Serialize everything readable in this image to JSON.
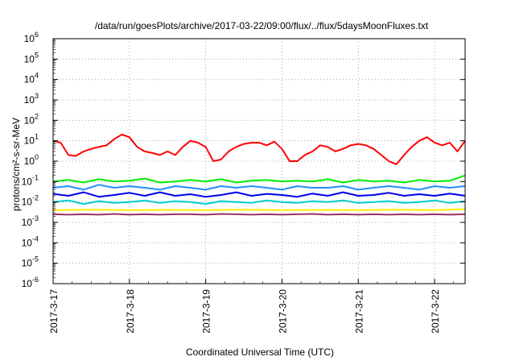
{
  "chart_data": {
    "type": "line",
    "title": "/data/run/goesPlots/archive/2017-03-22/09:00/flux/../flux/5daysMoonFluxes.txt",
    "xlabel": "Coordinated Universal Time (UTC)",
    "ylabel": "protons/cm²-s-sr-MeV",
    "yscale": "log",
    "ylim_exp": [
      -6,
      6
    ],
    "ytick_base": "10",
    "ytick_exponents": [
      "-6",
      "-5",
      "-4",
      "-3",
      "-2",
      "-1",
      "0",
      "1",
      "2",
      "3",
      "4",
      "5",
      "6"
    ],
    "xlim_days": [
      0,
      5.4
    ],
    "x_ticks": [
      {
        "day": 0,
        "label": "2017-3-17"
      },
      {
        "day": 1,
        "label": "2017-3-18"
      },
      {
        "day": 2,
        "label": "2017-3-19"
      },
      {
        "day": 3,
        "label": "2017-3-20"
      },
      {
        "day": 4,
        "label": "2017-3-21"
      },
      {
        "day": 5,
        "label": "2017-3-22"
      }
    ],
    "grid": true,
    "series": [
      {
        "color": "#ff0000",
        "x": [
          0,
          0.1,
          0.2,
          0.3,
          0.4,
          0.5,
          0.6,
          0.7,
          0.8,
          0.9,
          1.0,
          1.1,
          1.2,
          1.3,
          1.4,
          1.5,
          1.6,
          1.7,
          1.8,
          1.9,
          2.0,
          2.1,
          2.2,
          2.3,
          2.4,
          2.5,
          2.6,
          2.7,
          2.8,
          2.9,
          3.0,
          3.1,
          3.2,
          3.3,
          3.4,
          3.5,
          3.6,
          3.7,
          3.8,
          3.9,
          4.0,
          4.1,
          4.2,
          4.3,
          4.4,
          4.5,
          4.6,
          4.7,
          4.8,
          4.9,
          5.0,
          5.1,
          5.2,
          5.3,
          5.4
        ],
        "values": [
          10,
          8,
          2,
          1.8,
          3,
          4,
          5,
          6,
          12,
          20,
          15,
          5,
          3,
          2.5,
          2,
          3,
          2,
          5,
          10,
          8,
          5,
          1,
          1.2,
          3,
          5,
          7,
          8,
          8,
          6,
          9,
          4,
          1,
          1,
          2,
          3,
          6,
          5,
          3,
          4,
          6,
          7,
          6,
          4,
          2,
          1,
          0.7,
          2,
          5,
          10,
          15,
          8,
          6,
          8,
          3,
          10
        ]
      },
      {
        "color": "#00ee00",
        "x": [
          0,
          0.2,
          0.4,
          0.6,
          0.8,
          1.0,
          1.2,
          1.4,
          1.6,
          1.8,
          2.0,
          2.2,
          2.4,
          2.6,
          2.8,
          3.0,
          3.2,
          3.4,
          3.6,
          3.8,
          4.0,
          4.2,
          4.4,
          4.6,
          4.8,
          5.0,
          5.2,
          5.4
        ],
        "values": [
          0.1,
          0.12,
          0.09,
          0.13,
          0.1,
          0.11,
          0.14,
          0.09,
          0.1,
          0.12,
          0.1,
          0.13,
          0.09,
          0.11,
          0.12,
          0.1,
          0.11,
          0.1,
          0.13,
          0.09,
          0.12,
          0.1,
          0.11,
          0.09,
          0.12,
          0.1,
          0.11,
          0.2
        ]
      },
      {
        "color": "#1e90ff",
        "x": [
          0,
          0.2,
          0.4,
          0.6,
          0.8,
          1.0,
          1.2,
          1.4,
          1.6,
          1.8,
          2.0,
          2.2,
          2.4,
          2.6,
          2.8,
          3.0,
          3.2,
          3.4,
          3.6,
          3.8,
          4.0,
          4.2,
          4.4,
          4.6,
          4.8,
          5.0,
          5.2,
          5.4
        ],
        "values": [
          0.05,
          0.06,
          0.04,
          0.07,
          0.05,
          0.06,
          0.05,
          0.04,
          0.06,
          0.05,
          0.04,
          0.06,
          0.05,
          0.06,
          0.05,
          0.04,
          0.06,
          0.05,
          0.05,
          0.06,
          0.04,
          0.05,
          0.06,
          0.05,
          0.04,
          0.06,
          0.05,
          0.06
        ]
      },
      {
        "color": "#0000ee",
        "x": [
          0,
          0.2,
          0.4,
          0.6,
          0.8,
          1.0,
          1.2,
          1.4,
          1.6,
          1.8,
          2.0,
          2.2,
          2.4,
          2.6,
          2.8,
          3.0,
          3.2,
          3.4,
          3.6,
          3.8,
          4.0,
          4.2,
          4.4,
          4.6,
          4.8,
          5.0,
          5.2,
          5.4
        ],
        "values": [
          0.025,
          0.02,
          0.03,
          0.018,
          0.022,
          0.028,
          0.02,
          0.03,
          0.02,
          0.024,
          0.018,
          0.022,
          0.03,
          0.02,
          0.025,
          0.022,
          0.018,
          0.026,
          0.02,
          0.03,
          0.02,
          0.022,
          0.028,
          0.02,
          0.024,
          0.02,
          0.026,
          0.02
        ]
      },
      {
        "color": "#00cccc",
        "x": [
          0,
          0.2,
          0.4,
          0.6,
          0.8,
          1.0,
          1.2,
          1.4,
          1.6,
          1.8,
          2.0,
          2.2,
          2.4,
          2.6,
          2.8,
          3.0,
          3.2,
          3.4,
          3.6,
          3.8,
          4.0,
          4.2,
          4.4,
          4.6,
          4.8,
          5.0,
          5.2,
          5.4
        ],
        "values": [
          0.01,
          0.012,
          0.008,
          0.011,
          0.009,
          0.01,
          0.012,
          0.009,
          0.011,
          0.01,
          0.008,
          0.011,
          0.01,
          0.009,
          0.012,
          0.01,
          0.009,
          0.011,
          0.01,
          0.012,
          0.009,
          0.01,
          0.011,
          0.009,
          0.01,
          0.012,
          0.009,
          0.011
        ]
      },
      {
        "color": "#ffee00",
        "x": [
          0,
          0.5,
          1.0,
          1.5,
          2.0,
          2.5,
          3.0,
          3.5,
          4.0,
          4.5,
          5.0,
          5.4
        ],
        "values": [
          0.004,
          0.0042,
          0.004,
          0.0041,
          0.004,
          0.0042,
          0.004,
          0.0041,
          0.004,
          0.0042,
          0.004,
          0.0045
        ]
      },
      {
        "color": "#993366",
        "x": [
          0,
          0.2,
          0.4,
          0.6,
          0.8,
          1.0,
          1.2,
          1.4,
          1.6,
          1.8,
          2.0,
          2.2,
          2.4,
          2.6,
          2.8,
          3.0,
          3.2,
          3.4,
          3.6,
          3.8,
          4.0,
          4.2,
          4.4,
          4.6,
          4.8,
          5.0,
          5.2,
          5.4
        ],
        "values": [
          0.0025,
          0.0024,
          0.0025,
          0.0024,
          0.0026,
          0.0024,
          0.0025,
          0.0024,
          0.0025,
          0.0025,
          0.0024,
          0.0026,
          0.0025,
          0.0024,
          0.0025,
          0.0024,
          0.0025,
          0.0026,
          0.0024,
          0.0025,
          0.0024,
          0.0025,
          0.0024,
          0.0025,
          0.0024,
          0.0025,
          0.0024,
          0.0025
        ]
      }
    ]
  }
}
